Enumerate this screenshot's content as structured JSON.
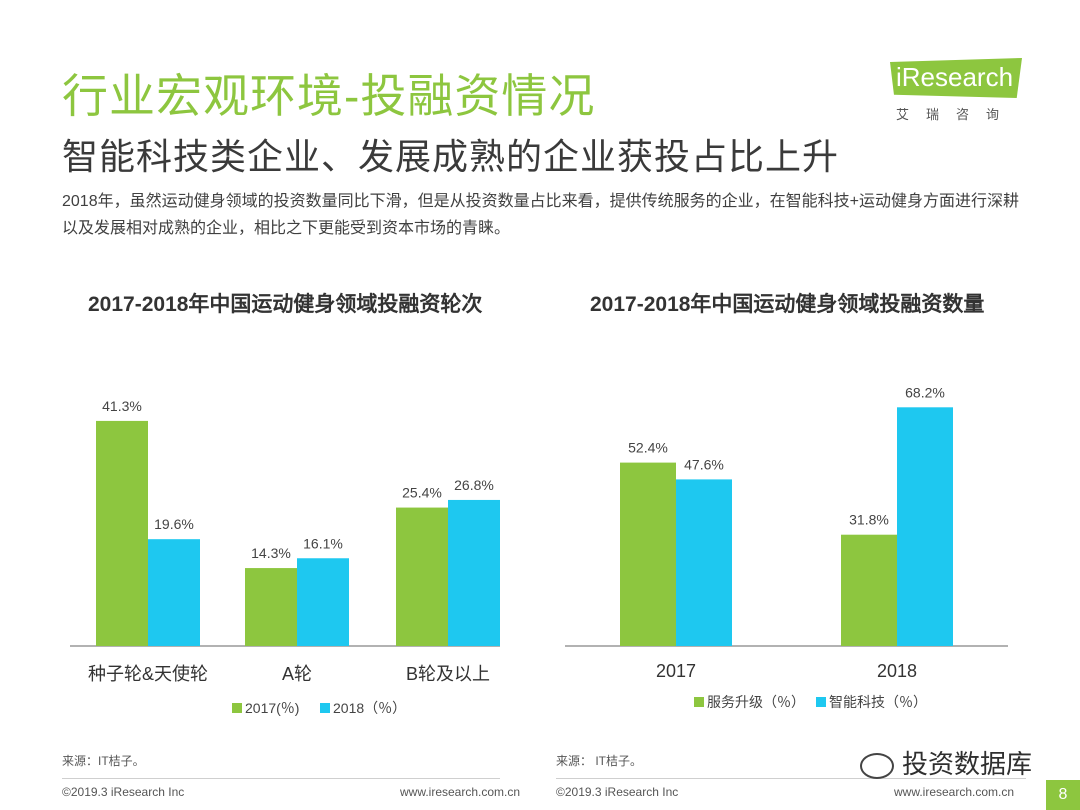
{
  "header": {
    "title": "行业宏观环境-投融资情况",
    "subtitle": "智能科技类企业、发展成熟的企业获投占比上升",
    "intro": "2018年，虽然运动健身领域的投资数量同比下滑，但是从投资数量占比来看，提供传统服务的企业，在智能科技+运动健身方面进行深耕以及发展相对成熟的企业，相比之下更能受到资本市场的青睐。"
  },
  "logo": {
    "text": "iResearch",
    "cn": "艾瑞咨询"
  },
  "colors": {
    "green": "#8dc63f",
    "blue": "#1ec8f0",
    "axis": "#999999"
  },
  "chart_data": [
    {
      "type": "bar",
      "title": "2017-2018年中国运动健身领域投融资轮次",
      "categories": [
        "种子轮&天使轮",
        "A轮",
        "B轮及以上"
      ],
      "series": [
        {
          "name": "2017(％)",
          "values": [
            41.3,
            14.3,
            25.4
          ],
          "labels": [
            "41.3%",
            "14.3%",
            "25.4%"
          ]
        },
        {
          "name": "2018（％）",
          "values": [
            19.6,
            16.1,
            26.8
          ],
          "labels": [
            "19.6%",
            "16.1%",
            "26.8%"
          ]
        }
      ],
      "ylim": [
        0,
        45
      ],
      "legend": "bottom"
    },
    {
      "type": "bar",
      "title": "2017-2018年中国运动健身领域投融资数量",
      "categories": [
        "2017",
        "2018"
      ],
      "series": [
        {
          "name": "服务升级（％）",
          "values": [
            52.4,
            31.8
          ],
          "labels": [
            "52.4%",
            "31.8%"
          ]
        },
        {
          "name": "智能科技（％）",
          "values": [
            47.6,
            68.2
          ],
          "labels": [
            "47.6%",
            "68.2%"
          ]
        }
      ],
      "ylim": [
        0,
        75
      ],
      "legend": "bottom"
    }
  ],
  "footer": {
    "source_left": "来源：IT桔子。",
    "source_right": "来源： IT桔子。",
    "copyright": "©2019.3 iResearch Inc",
    "website": "www.iresearch.com.cn",
    "watermark": "投资数据库",
    "page": "8"
  }
}
